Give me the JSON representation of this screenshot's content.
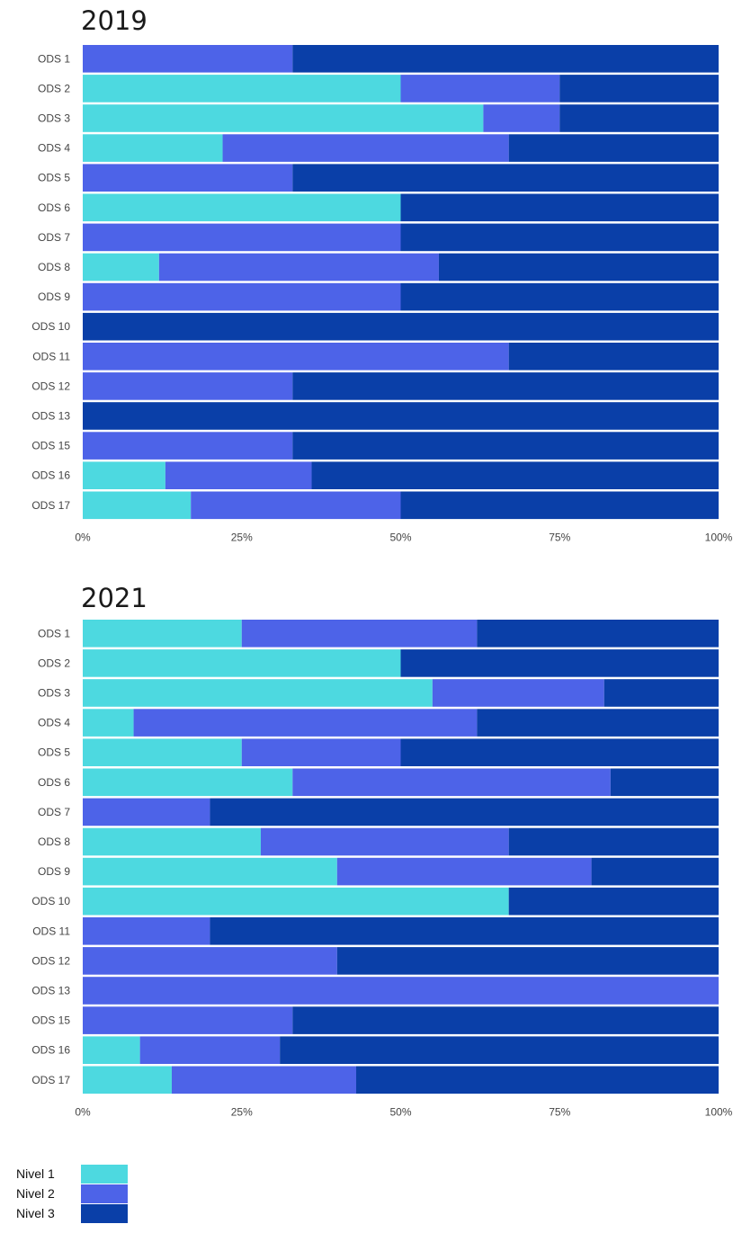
{
  "chart_data": [
    {
      "type": "bar",
      "stacked": "percent",
      "orientation": "horizontal",
      "title": "2019",
      "categories": [
        "ODS 1",
        "ODS 2",
        "ODS 3",
        "ODS 4",
        "ODS 5",
        "ODS 6",
        "ODS 7",
        "ODS 8",
        "ODS 9",
        "ODS 10",
        "ODS 11",
        "ODS 12",
        "ODS 13",
        "ODS 15",
        "ODS 16",
        "ODS 17"
      ],
      "series": [
        {
          "name": "Nivel 1",
          "values": [
            0,
            50,
            63,
            22,
            0,
            50,
            0,
            12,
            0,
            0,
            0,
            0,
            0,
            0,
            13,
            17
          ]
        },
        {
          "name": "Nivel 2",
          "values": [
            33,
            25,
            12,
            45,
            33,
            0,
            50,
            44,
            50,
            0,
            67,
            33,
            0,
            33,
            23,
            33
          ]
        },
        {
          "name": "Nivel 3",
          "values": [
            67,
            25,
            25,
            33,
            67,
            50,
            50,
            44,
            50,
            100,
            33,
            67,
            100,
            67,
            64,
            50
          ]
        }
      ],
      "xlim": [
        0,
        100
      ],
      "x_ticks": [
        "0%",
        "25%",
        "50%",
        "75%",
        "100%"
      ]
    },
    {
      "type": "bar",
      "stacked": "percent",
      "orientation": "horizontal",
      "title": "2021",
      "categories": [
        "ODS 1",
        "ODS 2",
        "ODS 3",
        "ODS 4",
        "ODS 5",
        "ODS 6",
        "ODS 7",
        "ODS 8",
        "ODS 9",
        "ODS 10",
        "ODS 11",
        "ODS 12",
        "ODS 13",
        "ODS 15",
        "ODS 16",
        "ODS 17"
      ],
      "series": [
        {
          "name": "Nivel 1",
          "values": [
            25,
            50,
            55,
            8,
            25,
            33,
            0,
            28,
            40,
            67,
            0,
            0,
            0,
            0,
            9,
            14
          ]
        },
        {
          "name": "Nivel 2",
          "values": [
            37,
            0,
            27,
            54,
            25,
            50,
            20,
            39,
            40,
            0,
            20,
            40,
            100,
            33,
            22,
            29
          ]
        },
        {
          "name": "Nivel 3",
          "values": [
            38,
            50,
            18,
            38,
            50,
            17,
            80,
            33,
            20,
            33,
            80,
            60,
            0,
            67,
            69,
            57
          ]
        }
      ],
      "xlim": [
        0,
        100
      ],
      "x_ticks": [
        "0%",
        "25%",
        "50%",
        "75%",
        "100%"
      ]
    }
  ],
  "legend": {
    "position": "bottom-left",
    "items": [
      {
        "label": "Nivel 1",
        "color": "#4dd9e0"
      },
      {
        "label": "Nivel 2",
        "color": "#4d63e8"
      },
      {
        "label": "Nivel 3",
        "color": "#0a3fa8"
      }
    ]
  }
}
